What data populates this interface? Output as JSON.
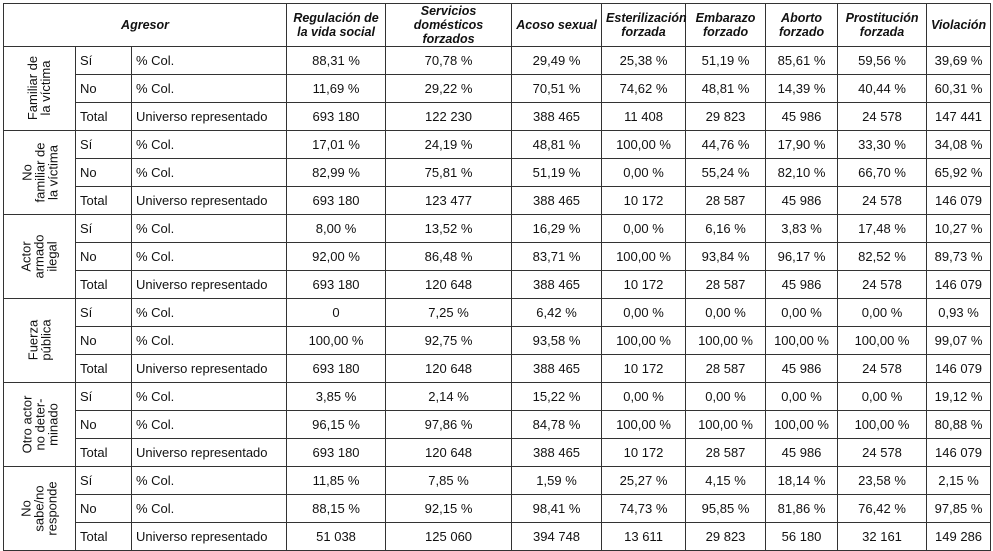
{
  "header": {
    "agresor": "Agresor",
    "columns": [
      "Regulación de la vida social",
      "Servicios domésticos forzados",
      "Acoso sexual",
      "Esterilización forzada",
      "Embarazo forzado",
      "Aborto forzado",
      "Prostitución forzada",
      "Violación"
    ]
  },
  "groups": [
    {
      "label": "Familiar de\nla víctima",
      "rows": [
        {
          "a": "Sí",
          "b": "% Col.",
          "v": [
            "88,31 %",
            "70,78 %",
            "29,49 %",
            "25,38 %",
            "51,19 %",
            "85,61 %",
            "59,56 %",
            "39,69 %"
          ]
        },
        {
          "a": "No",
          "b": "% Col.",
          "v": [
            "11,69 %",
            "29,22 %",
            "70,51 %",
            "74,62 %",
            "48,81 %",
            "14,39 %",
            "40,44 %",
            "60,31 %"
          ]
        },
        {
          "a": "Total",
          "b": "Universo representado",
          "v": [
            "693 180",
            "122 230",
            "388 465",
            "11 408",
            "29 823",
            "45 986",
            "24 578",
            "147 441"
          ]
        }
      ]
    },
    {
      "label": "No\nfamiliar de\nla víctima",
      "rows": [
        {
          "a": "Sí",
          "b": "% Col.",
          "v": [
            "17,01 %",
            "24,19 %",
            "48,81 %",
            "100,00 %",
            "44,76 %",
            "17,90 %",
            "33,30 %",
            "34,08 %"
          ]
        },
        {
          "a": "No",
          "b": "% Col.",
          "v": [
            "82,99 %",
            "75,81 %",
            "51,19 %",
            "0,00 %",
            "55,24 %",
            "82,10 %",
            "66,70 %",
            "65,92 %"
          ]
        },
        {
          "a": "Total",
          "b": "Universo representado",
          "v": [
            "693 180",
            "123 477",
            "388 465",
            "10 172",
            "28 587",
            "45 986",
            "24 578",
            "146 079"
          ]
        }
      ]
    },
    {
      "label": "Actor\narmado\nilegal",
      "rows": [
        {
          "a": "Sí",
          "b": "% Col.",
          "v": [
            "8,00 %",
            "13,52 %",
            "16,29 %",
            "0,00 %",
            "6,16 %",
            "3,83 %",
            "17,48 %",
            "10,27 %"
          ]
        },
        {
          "a": "No",
          "b": "% Col.",
          "v": [
            "92,00 %",
            "86,48 %",
            "83,71 %",
            "100,00 %",
            "93,84 %",
            "96,17 %",
            "82,52 %",
            "89,73 %"
          ]
        },
        {
          "a": "Total",
          "b": "Universo representado",
          "v": [
            "693 180",
            "120 648",
            "388 465",
            "10 172",
            "28 587",
            "45 986",
            "24 578",
            "146 079"
          ]
        }
      ]
    },
    {
      "label": "Fuerza\npública",
      "rows": [
        {
          "a": "Sí",
          "b": "% Col.",
          "v": [
            "0",
            "7,25 %",
            "6,42 %",
            "0,00 %",
            "0,00 %",
            "0,00 %",
            "0,00 %",
            "0,93 %"
          ]
        },
        {
          "a": "No",
          "b": "% Col.",
          "v": [
            "100,00 %",
            "92,75 %",
            "93,58 %",
            "100,00 %",
            "100,00 %",
            "100,00 %",
            "100,00 %",
            "99,07 %"
          ]
        },
        {
          "a": "Total",
          "b": "Universo representado",
          "v": [
            "693 180",
            "120 648",
            "388 465",
            "10 172",
            "28 587",
            "45 986",
            "24 578",
            "146 079"
          ]
        }
      ]
    },
    {
      "label": "Otro actor\nno deter-\nminado",
      "rows": [
        {
          "a": "Sí",
          "b": "% Col.",
          "v": [
            "3,85 %",
            "2,14 %",
            "15,22 %",
            "0,00 %",
            "0,00 %",
            "0,00 %",
            "0,00 %",
            "19,12 %"
          ]
        },
        {
          "a": "No",
          "b": "% Col.",
          "v": [
            "96,15 %",
            "97,86 %",
            "84,78 %",
            "100,00 %",
            "100,00 %",
            "100,00 %",
            "100,00 %",
            "80,88 %"
          ]
        },
        {
          "a": "Total",
          "b": "Universo representado",
          "v": [
            "693 180",
            "120 648",
            "388 465",
            "10 172",
            "28 587",
            "45 986",
            "24 578",
            "146 079"
          ]
        }
      ]
    },
    {
      "label": "No\nsabe/no\nresponde",
      "rows": [
        {
          "a": "Sí",
          "b": "% Col.",
          "v": [
            "11,85 %",
            "7,85 %",
            "1,59 %",
            "25,27 %",
            "4,15 %",
            "18,14 %",
            "23,58 %",
            "2,15 %"
          ]
        },
        {
          "a": "No",
          "b": "% Col.",
          "v": [
            "88,15 %",
            "92,15 %",
            "98,41 %",
            "74,73 %",
            "95,85 %",
            "81,86 %",
            "76,42 %",
            "97,85 %"
          ]
        },
        {
          "a": "Total",
          "b": "Universo representado",
          "v": [
            "51 038",
            "125 060",
            "394 748",
            "13 611",
            "29 823",
            "56 180",
            "32 161",
            "149 286"
          ]
        }
      ]
    }
  ]
}
